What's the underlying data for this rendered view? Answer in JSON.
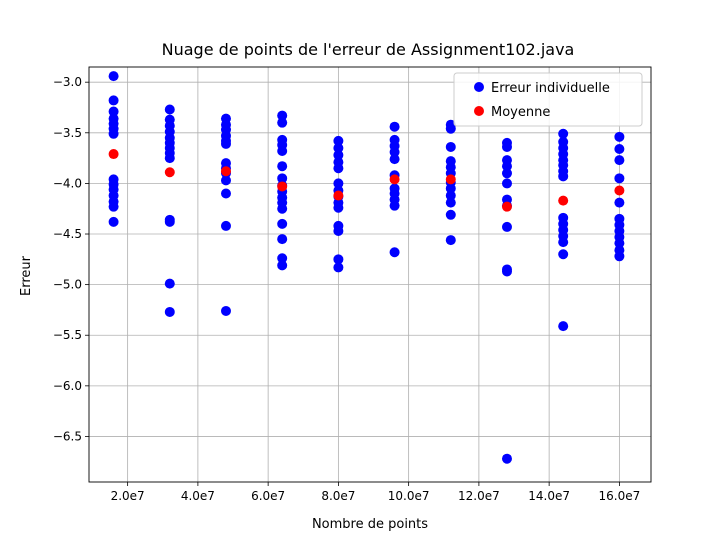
{
  "chart_data": {
    "type": "scatter",
    "title": "Nuage de points de l'erreur de Assignment102.java",
    "xlabel": "Nombre de points",
    "ylabel": "Erreur",
    "xlim": [
      9000000,
      169000000
    ],
    "ylim": [
      -6.95,
      -2.85
    ],
    "grid": true,
    "legend_position": "top-right",
    "x_ticks": [
      {
        "value": 20000000,
        "label": "2.0e7"
      },
      {
        "value": 40000000,
        "label": "4.0e7"
      },
      {
        "value": 60000000,
        "label": "6.0e7"
      },
      {
        "value": 80000000,
        "label": "8.0e7"
      },
      {
        "value": 100000000,
        "label": "10.0e7"
      },
      {
        "value": 120000000,
        "label": "12.0e7"
      },
      {
        "value": 140000000,
        "label": "14.0e7"
      },
      {
        "value": 160000000,
        "label": "16.0e7"
      }
    ],
    "y_ticks": [
      {
        "value": -3.0,
        "label": "−3.0"
      },
      {
        "value": -3.5,
        "label": "−3.5"
      },
      {
        "value": -4.0,
        "label": "−4.0"
      },
      {
        "value": -4.5,
        "label": "−4.5"
      },
      {
        "value": -5.0,
        "label": "−5.0"
      },
      {
        "value": -5.5,
        "label": "−5.5"
      },
      {
        "value": -6.0,
        "label": "−6.0"
      },
      {
        "value": -6.5,
        "label": "−6.5"
      }
    ],
    "series": [
      {
        "name": "Erreur individuelle",
        "color": "#0000ff",
        "groups": [
          {
            "x": 16000000,
            "y": [
              -2.94,
              -3.18,
              -3.29,
              -3.36,
              -3.41,
              -3.46,
              -3.51,
              -3.96,
              -4.01,
              -4.06,
              -4.12,
              -4.18,
              -4.23,
              -4.38
            ]
          },
          {
            "x": 32000000,
            "y": [
              -3.27,
              -3.37,
              -3.43,
              -3.49,
              -3.55,
              -3.6,
              -3.65,
              -3.7,
              -3.75,
              -4.36,
              -4.38,
              -4.99,
              -5.27
            ]
          },
          {
            "x": 48000000,
            "y": [
              -3.36,
              -3.42,
              -3.47,
              -3.53,
              -3.58,
              -3.61,
              -3.8,
              -3.85,
              -3.9,
              -3.97,
              -4.1,
              -4.42,
              -5.26
            ]
          },
          {
            "x": 64000000,
            "y": [
              -3.33,
              -3.4,
              -3.57,
              -3.62,
              -3.68,
              -3.83,
              -3.95,
              -4.02,
              -4.08,
              -4.14,
              -4.19,
              -4.25,
              -4.4,
              -4.55,
              -4.74,
              -4.81
            ]
          },
          {
            "x": 80000000,
            "y": [
              -3.58,
              -3.65,
              -3.72,
              -3.79,
              -3.85,
              -4.0,
              -4.07,
              -4.13,
              -4.19,
              -4.24,
              -4.42,
              -4.47,
              -4.75,
              -4.83
            ]
          },
          {
            "x": 96000000,
            "y": [
              -3.44,
              -3.57,
              -3.63,
              -3.69,
              -3.76,
              -3.92,
              -4.05,
              -4.1,
              -4.16,
              -4.22,
              -4.68
            ]
          },
          {
            "x": 112000000,
            "y": [
              -3.42,
              -3.46,
              -3.64,
              -3.78,
              -3.84,
              -3.9,
              -3.99,
              -4.05,
              -4.12,
              -4.19,
              -4.31,
              -4.56
            ]
          },
          {
            "x": 128000000,
            "y": [
              -3.6,
              -3.64,
              -3.77,
              -3.83,
              -3.9,
              -4.0,
              -4.16,
              -4.22,
              -4.43,
              -4.85,
              -4.87,
              -6.72
            ]
          },
          {
            "x": 144000000,
            "y": [
              -3.51,
              -3.59,
              -3.65,
              -3.71,
              -3.77,
              -3.82,
              -3.88,
              -3.93,
              -4.34,
              -4.4,
              -4.46,
              -4.52,
              -4.58,
              -4.7,
              -5.41
            ]
          },
          {
            "x": 160000000,
            "y": [
              -3.54,
              -3.66,
              -3.77,
              -3.95,
              -4.19,
              -4.35,
              -4.41,
              -4.47,
              -4.53,
              -4.59,
              -4.66,
              -4.72
            ]
          }
        ]
      },
      {
        "name": "Moyenne",
        "color": "#ff0000",
        "x": [
          16000000,
          32000000,
          48000000,
          64000000,
          80000000,
          96000000,
          112000000,
          128000000,
          144000000,
          160000000
        ],
        "y": [
          -3.71,
          -3.89,
          -3.88,
          -4.03,
          -4.12,
          -3.96,
          -3.96,
          -4.23,
          -4.17,
          -4.07
        ]
      }
    ]
  }
}
